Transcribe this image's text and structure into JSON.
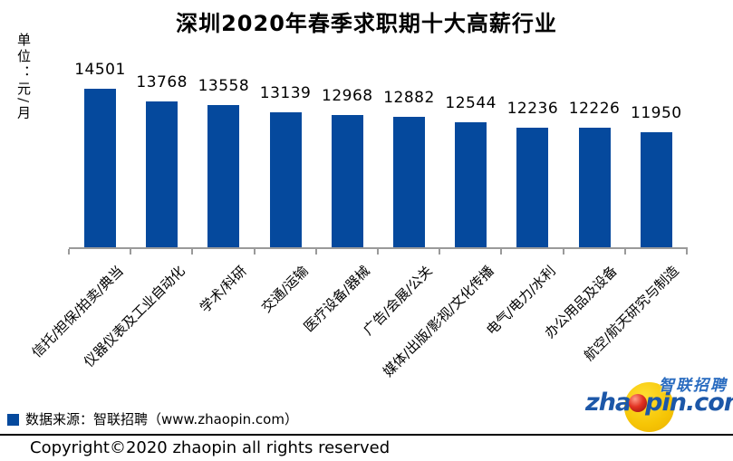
{
  "title": "深圳2020年春季求职期十大高薪行业",
  "unit_label": "单位：元/月",
  "chart_data": {
    "type": "bar",
    "title": "深圳2020年春季求职期十大高薪行业",
    "ylabel": "单位：元/月",
    "xlabel": "",
    "categories": [
      "信托/担保/拍卖/典当",
      "仪器仪表及工业自动化",
      "学术/科研",
      "交通/运输",
      "医疗设备/器械",
      "广告/会展/公关",
      "媒体/出版/影视/文化传播",
      "电气/电力/水利",
      "办公用品及设备",
      "航空/航天研究与制造"
    ],
    "values": [
      14501,
      13768,
      13558,
      13139,
      12968,
      12882,
      12544,
      12236,
      12226,
      11950
    ],
    "value_labels_shown": true,
    "bar_color": "#05499D",
    "axis_line_color": "#9a9a9a",
    "gridlines": false,
    "legend_position": "none",
    "ylim_visual_estimate": [
      5200,
      14800
    ],
    "category_label_rotation_deg": 45
  },
  "source_legend": {
    "marker_color": "#05499D",
    "label": "数据来源：智联招聘（www.zhaopin.com）"
  },
  "footer": {
    "copyright": "Copyright©2020 zhaopin all rights reserved"
  },
  "logo": {
    "cn_text": "智联招聘",
    "en_prefix": "zha",
    "en_suffix": "pin.com",
    "yellow": "#f6c505",
    "blue": "#1c57a8",
    "red_ball": "#c7170f"
  }
}
